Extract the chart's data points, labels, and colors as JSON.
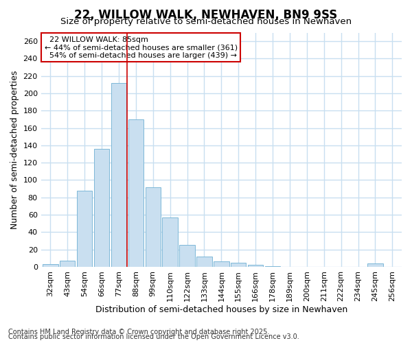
{
  "title": "22, WILLOW WALK, NEWHAVEN, BN9 9SS",
  "subtitle": "Size of property relative to semi-detached houses in Newhaven",
  "xlabel": "Distribution of semi-detached houses by size in Newhaven",
  "ylabel": "Number of semi-detached properties",
  "categories": [
    "32sqm",
    "43sqm",
    "54sqm",
    "66sqm",
    "77sqm",
    "88sqm",
    "99sqm",
    "110sqm",
    "122sqm",
    "133sqm",
    "144sqm",
    "155sqm",
    "166sqm",
    "178sqm",
    "189sqm",
    "200sqm",
    "211sqm",
    "222sqm",
    "234sqm",
    "245sqm",
    "256sqm"
  ],
  "values": [
    3,
    7,
    88,
    136,
    212,
    170,
    92,
    57,
    25,
    12,
    6,
    5,
    2,
    1,
    0,
    0,
    0,
    0,
    0,
    4,
    0
  ],
  "bar_color": "#c9dff0",
  "bar_edge_color": "#7db8d8",
  "vline_index": 5,
  "vline_color": "#cc0000",
  "marker_label": "22 WILLOW WALK: 85sqm",
  "pct_smaller": 44,
  "count_smaller": 361,
  "pct_larger": 54,
  "count_larger": 439,
  "annotation_box_color": "#ffffff",
  "annotation_border_color": "#cc0000",
  "ylim": [
    0,
    270
  ],
  "yticks": [
    0,
    20,
    40,
    60,
    80,
    100,
    120,
    140,
    160,
    180,
    200,
    220,
    240,
    260
  ],
  "footnote1": "Contains HM Land Registry data © Crown copyright and database right 2025.",
  "footnote2": "Contains public sector information licensed under the Open Government Licence v3.0.",
  "bg_color": "#ffffff",
  "grid_color": "#c8dff0",
  "title_fontsize": 12,
  "subtitle_fontsize": 9.5,
  "axis_label_fontsize": 9,
  "tick_fontsize": 8,
  "footnote_fontsize": 7
}
